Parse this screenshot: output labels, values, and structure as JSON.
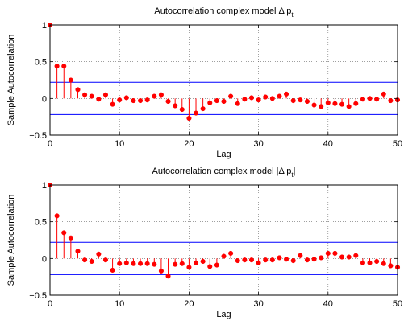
{
  "chart_data": [
    {
      "type": "stem",
      "title": "Autocorrelation complex model Δ p",
      "title_subscript": "t",
      "xlabel": "Lag",
      "ylabel": "Sample Autocorrelation",
      "xlim": [
        0,
        50
      ],
      "ylim": [
        -0.5,
        1
      ],
      "xticks": [
        0,
        10,
        20,
        30,
        40,
        50
      ],
      "yticks": [
        -0.5,
        0,
        0.5,
        1
      ],
      "ytick_labels": [
        "−0.5",
        "0",
        "0.5",
        "1"
      ],
      "grid": true,
      "confidence_bounds": [
        0.22,
        -0.22
      ],
      "stem_color": "#ff0000",
      "bound_color": "#0000ff",
      "lags": [
        0,
        1,
        2,
        3,
        4,
        5,
        6,
        7,
        8,
        9,
        10,
        11,
        12,
        13,
        14,
        15,
        16,
        17,
        18,
        19,
        20,
        21,
        22,
        23,
        24,
        25,
        26,
        27,
        28,
        29,
        30,
        31,
        32,
        33,
        34,
        35,
        36,
        37,
        38,
        39,
        40,
        41,
        42,
        43,
        44,
        45,
        46,
        47,
        48,
        49,
        50
      ],
      "values": [
        1,
        0.44,
        0.44,
        0.25,
        0.12,
        0.05,
        0.03,
        -0.01,
        0.05,
        -0.08,
        -0.02,
        0.01,
        -0.03,
        -0.03,
        -0.02,
        0.03,
        0.05,
        -0.04,
        -0.1,
        -0.15,
        -0.27,
        -0.2,
        -0.14,
        -0.06,
        -0.03,
        -0.04,
        0.03,
        -0.07,
        -0.01,
        0.01,
        -0.02,
        0.02,
        0.0,
        0.03,
        0.06,
        -0.03,
        -0.02,
        -0.04,
        -0.09,
        -0.11,
        -0.06,
        -0.07,
        -0.08,
        -0.11,
        -0.07,
        -0.01,
        0.0,
        -0.01,
        0.06,
        -0.03,
        -0.02
      ]
    },
    {
      "type": "stem",
      "title": "Autocorrelation complex model |Δ p",
      "title_subscript": "t",
      "title_suffix": "|",
      "xlabel": "Lag",
      "ylabel": "Sample Autocorrelation",
      "xlim": [
        0,
        50
      ],
      "ylim": [
        -0.5,
        1
      ],
      "xticks": [
        0,
        10,
        20,
        30,
        40,
        50
      ],
      "yticks": [
        -0.5,
        0,
        0.5,
        1
      ],
      "ytick_labels": [
        "−0.5",
        "0",
        "0.5",
        "1"
      ],
      "grid": true,
      "confidence_bounds": [
        0.22,
        -0.22
      ],
      "stem_color": "#ff0000",
      "bound_color": "#0000ff",
      "lags": [
        0,
        1,
        2,
        3,
        4,
        5,
        6,
        7,
        8,
        9,
        10,
        11,
        12,
        13,
        14,
        15,
        16,
        17,
        18,
        19,
        20,
        21,
        22,
        23,
        24,
        25,
        26,
        27,
        28,
        29,
        30,
        31,
        32,
        33,
        34,
        35,
        36,
        37,
        38,
        39,
        40,
        41,
        42,
        43,
        44,
        45,
        46,
        47,
        48,
        49,
        50
      ],
      "values": [
        1,
        0.58,
        0.35,
        0.28,
        0.1,
        -0.02,
        -0.04,
        0.06,
        -0.02,
        -0.16,
        -0.07,
        -0.06,
        -0.07,
        -0.07,
        -0.07,
        -0.08,
        -0.17,
        -0.24,
        -0.08,
        -0.07,
        -0.12,
        -0.06,
        -0.04,
        -0.11,
        -0.09,
        0.03,
        0.07,
        -0.03,
        -0.02,
        -0.02,
        -0.06,
        -0.02,
        -0.02,
        0.01,
        -0.01,
        -0.03,
        0.04,
        -0.02,
        -0.01,
        0.01,
        0.07,
        0.07,
        0.02,
        0.02,
        0.04,
        -0.06,
        -0.06,
        -0.04,
        -0.07,
        -0.1,
        -0.12
      ]
    }
  ]
}
